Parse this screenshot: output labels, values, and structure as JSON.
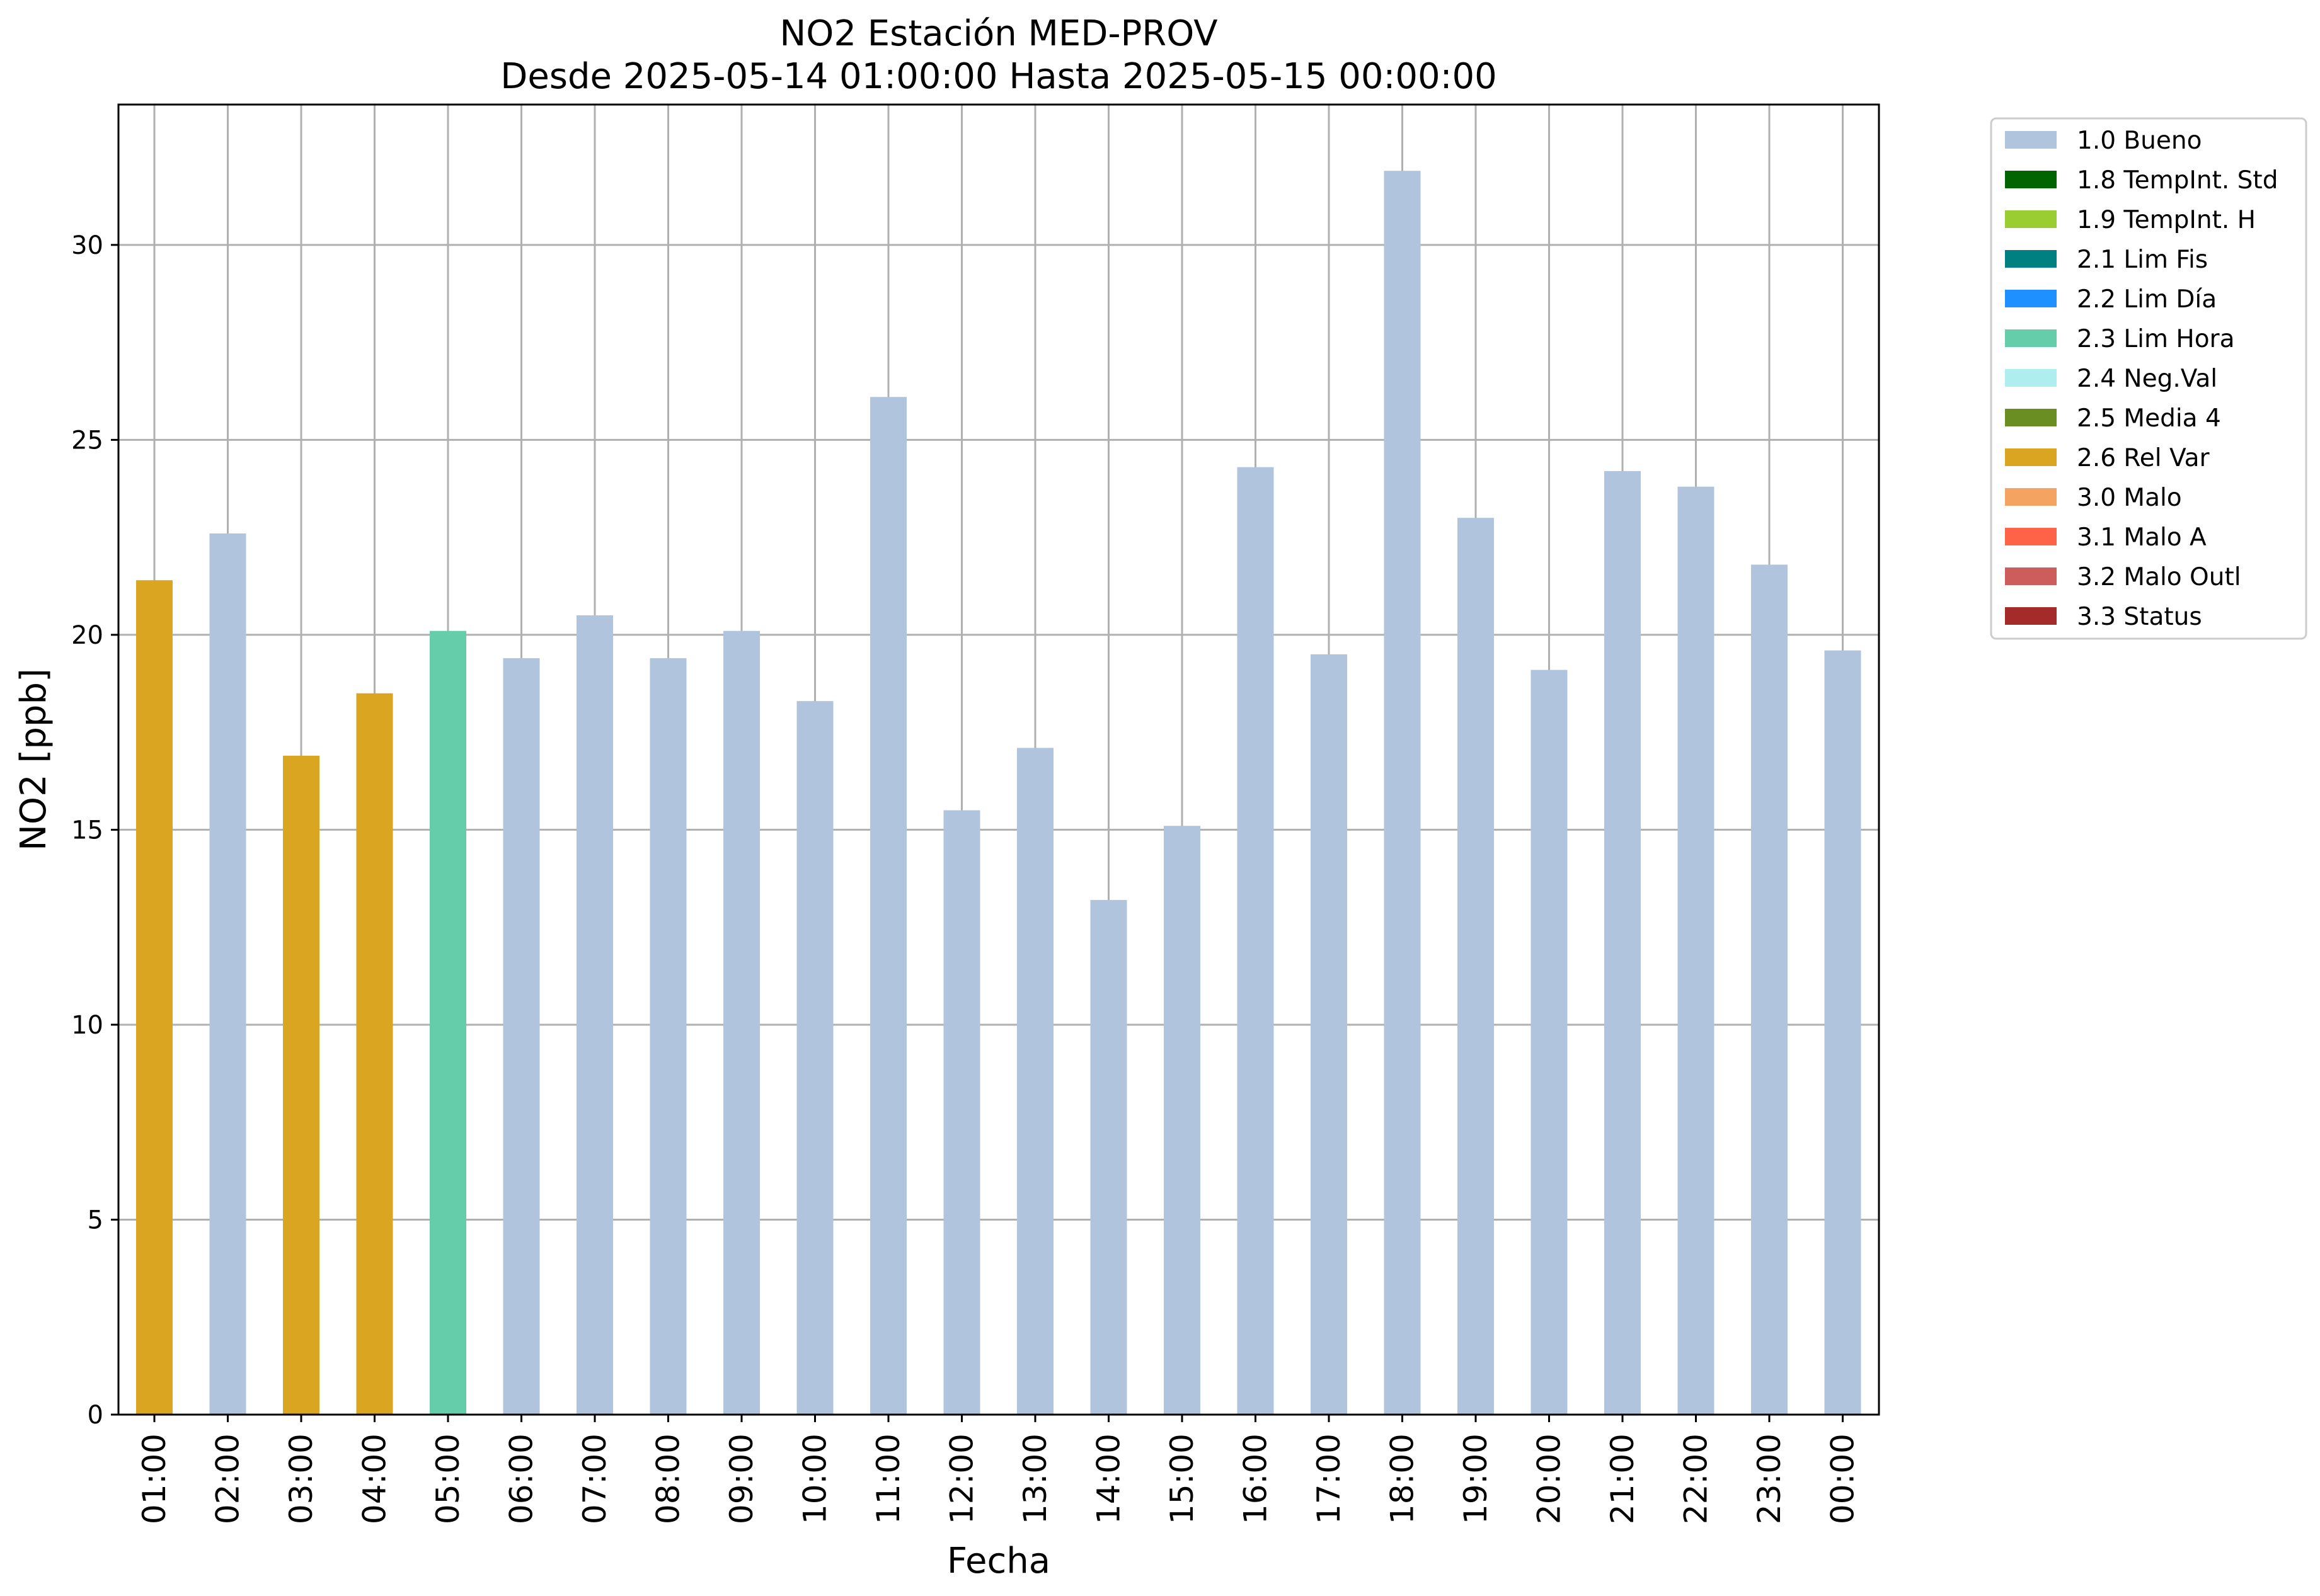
{
  "chart_data": {
    "type": "bar",
    "title": "NO2 Estación MED-PROV",
    "subtitle": "Desde 2025-05-14 01:00:00 Hasta 2025-05-15 00:00:00",
    "xlabel": "Fecha",
    "ylabel": "NO2 [ppb]",
    "ylim": [
      0,
      33.6
    ],
    "yticks": [
      0,
      5,
      10,
      15,
      20,
      25,
      30
    ],
    "grid": true,
    "legend_position": "outside-top-right",
    "categories": [
      "01:00",
      "02:00",
      "03:00",
      "04:00",
      "05:00",
      "06:00",
      "07:00",
      "08:00",
      "09:00",
      "10:00",
      "11:00",
      "12:00",
      "13:00",
      "14:00",
      "15:00",
      "16:00",
      "17:00",
      "18:00",
      "19:00",
      "20:00",
      "21:00",
      "22:00",
      "23:00",
      "00:00"
    ],
    "values": [
      21.4,
      22.6,
      16.9,
      18.5,
      20.1,
      19.4,
      20.5,
      19.4,
      20.1,
      18.3,
      26.1,
      15.5,
      17.1,
      13.2,
      15.1,
      24.3,
      19.5,
      31.9,
      23.0,
      19.1,
      24.2,
      23.8,
      21.8,
      19.6
    ],
    "flags": [
      "2.6 Rel Var",
      "1.0 Bueno",
      "2.6 Rel Var",
      "2.6 Rel Var",
      "2.3 Lim Hora",
      "1.0 Bueno",
      "1.0 Bueno",
      "1.0 Bueno",
      "1.0 Bueno",
      "1.0 Bueno",
      "1.0 Bueno",
      "1.0 Bueno",
      "1.0 Bueno",
      "1.0 Bueno",
      "1.0 Bueno",
      "1.0 Bueno",
      "1.0 Bueno",
      "1.0 Bueno",
      "1.0 Bueno",
      "1.0 Bueno",
      "1.0 Bueno",
      "1.0 Bueno",
      "1.0 Bueno",
      "1.0 Bueno"
    ],
    "legend": [
      {
        "label": "1.0 Bueno",
        "color": "#b0c4de"
      },
      {
        "label": "1.8 TempInt. Std",
        "color": "#006400"
      },
      {
        "label": "1.9 TempInt. H",
        "color": "#9acd32"
      },
      {
        "label": "2.1 Lim Fis",
        "color": "#008080"
      },
      {
        "label": "2.2 Lim Día",
        "color": "#1e90ff"
      },
      {
        "label": "2.3 Lim Hora",
        "color": "#66cdaa"
      },
      {
        "label": "2.4 Neg.Val",
        "color": "#afeeee"
      },
      {
        "label": "2.5 Media 4",
        "color": "#6b8e23"
      },
      {
        "label": "2.6 Rel Var",
        "color": "#daa520"
      },
      {
        "label": "3.0 Malo",
        "color": "#f4a460"
      },
      {
        "label": "3.1 Malo A",
        "color": "#ff6347"
      },
      {
        "label": "3.2 Malo Outl",
        "color": "#cd5c5c"
      },
      {
        "label": "3.3 Status",
        "color": "#a52a2a"
      }
    ]
  }
}
